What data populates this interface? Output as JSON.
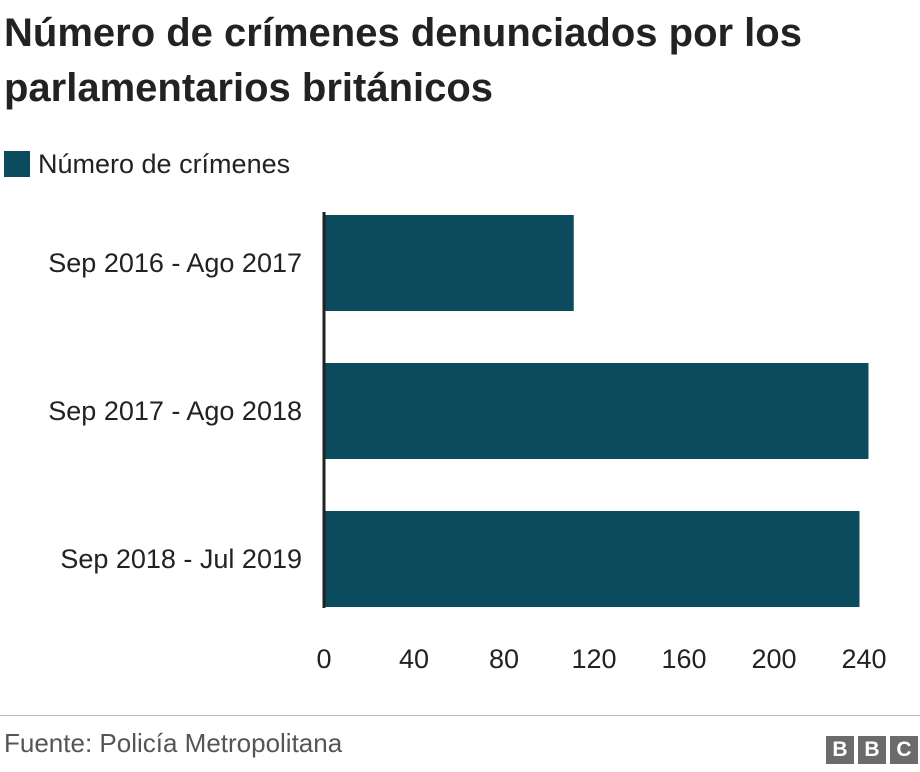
{
  "chart_data": {
    "type": "bar",
    "orientation": "horizontal",
    "title": "Número de crímenes denunciados por los parlamentarios británicos",
    "categories": [
      "Sep 2016 - Ago 2017",
      "Sep 2017 - Ago 2018",
      "Sep 2018 - Jul 2019"
    ],
    "series": [
      {
        "name": "Número de crímenes",
        "values": [
          111,
          242,
          238
        ],
        "color": "#0c4b5e"
      }
    ],
    "xticks": [
      "0",
      "40",
      "80",
      "120",
      "160",
      "200",
      "240"
    ],
    "xlim": [
      0,
      240
    ],
    "grid": false,
    "legend_position": "top-left"
  },
  "footer": {
    "source": "Fuente: Policía Metropolitana",
    "logo_letters": [
      "B",
      "B",
      "C"
    ]
  }
}
